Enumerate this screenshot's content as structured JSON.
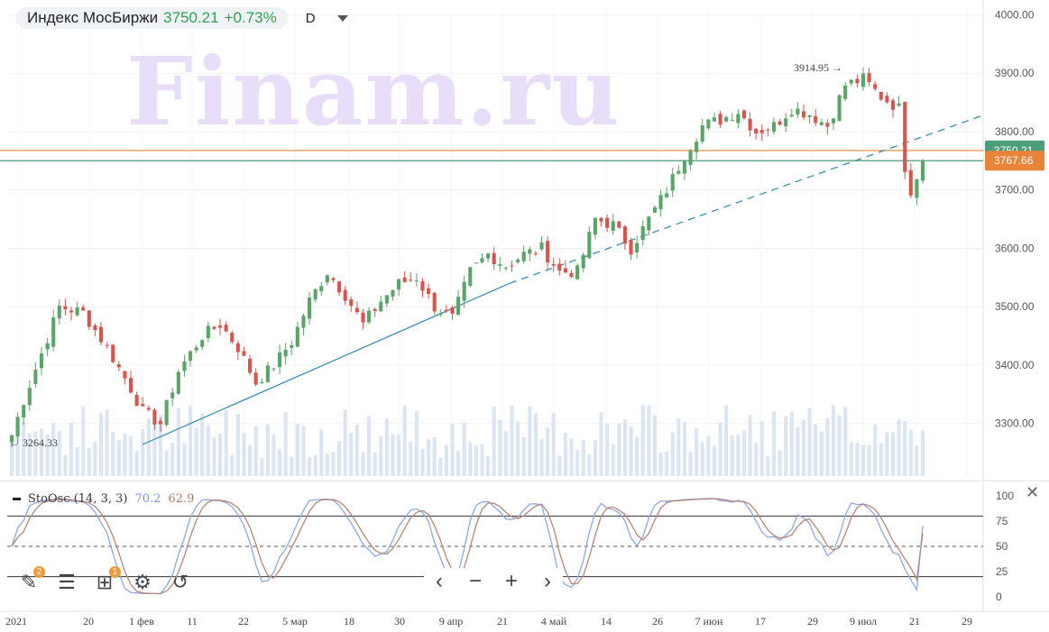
{
  "header": {
    "name": "Индекс МосБиржи",
    "price": "3750.21",
    "change": "+0.73%",
    "interval": "D"
  },
  "watermark": "Finam.ru",
  "indicator": {
    "name": "StoOsc (14, 3, 3)",
    "k_value": "70.2",
    "d_value": "62.9",
    "levels": [
      "100",
      "75",
      "50",
      "25",
      "0"
    ]
  },
  "toolbar": {
    "draw_badge": "2",
    "add_badge": "1"
  },
  "chart_data": {
    "type": "candlestick",
    "title": "Индекс МосБиржи",
    "y_range": [
      3210,
      4010
    ],
    "y_ticks": [
      "4000.00",
      "3900.00",
      "3800.00",
      "3700.00",
      "3600.00",
      "3500.00",
      "3400.00",
      "3300.00"
    ],
    "x_ticks": [
      "2021",
      "20",
      "1 фев",
      "11",
      "22",
      "5 мар",
      "18",
      "30",
      "9 апр",
      "21",
      "4 май",
      "14",
      "26",
      "7 июн",
      "17",
      "29",
      "9 июл",
      "21",
      "29"
    ],
    "annotations": [
      {
        "text": "3914.95",
        "type": "high"
      },
      {
        "text": "3264.33",
        "type": "low"
      }
    ],
    "price_labels": [
      {
        "text": "3750.21",
        "color": "#4a9e7a"
      },
      {
        "text": "3767.66",
        "color": "#e8833a"
      }
    ],
    "horizontal_lines": [
      {
        "value": 3767.66,
        "color": "#e8833a"
      },
      {
        "value": 3750.21,
        "color": "#4a9e7a"
      }
    ],
    "trendline": {
      "from": 3264,
      "to": 3540,
      "extended_to": 3828
    },
    "up_color": "#5aa469",
    "down_color": "#d9534f",
    "stochastic": {
      "k_last": 70.2,
      "d_last": 62.9,
      "overbought": 80,
      "mid": 50,
      "oversold": 20
    }
  }
}
